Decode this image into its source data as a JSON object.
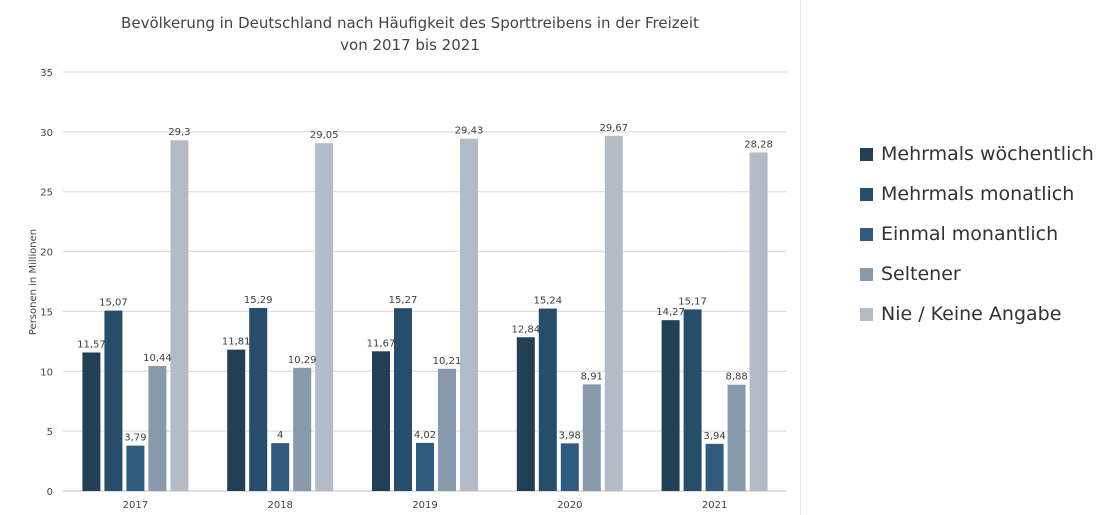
{
  "chart_data": {
    "type": "bar",
    "title": "Bevölkerung in Deutschland nach Häufigkeit des Sporttreibens in der Freizeit",
    "subtitle": "von 2017 bis 2021",
    "xlabel": "",
    "ylabel": "Personen in Millionen",
    "ylim": [
      0,
      35
    ],
    "yticks": [
      0,
      5,
      10,
      15,
      20,
      25,
      30,
      35
    ],
    "grid": true,
    "legend_position": "right",
    "categories": [
      "2017",
      "2018",
      "2019",
      "2020",
      "2021"
    ],
    "series": [
      {
        "name": "Mehrmals wöchentlich",
        "color": "#213f55",
        "values": [
          11.57,
          11.81,
          11.67,
          12.84,
          14.27
        ],
        "labels": [
          "11,57",
          "11,81",
          "11,67",
          "12,84",
          "14,27"
        ]
      },
      {
        "name": "Mehrmals monatlich",
        "color": "#264d6a",
        "values": [
          15.07,
          15.29,
          15.27,
          15.24,
          15.17
        ],
        "labels": [
          "15,07",
          "15,29",
          "15,27",
          "15,24",
          "15,17"
        ]
      },
      {
        "name": "Einmal monantlich",
        "color": "#2e5b7e",
        "values": [
          3.79,
          4,
          4.02,
          3.98,
          3.94
        ],
        "labels": [
          "3,79",
          "4",
          "4,02",
          "3,98",
          "3,94"
        ]
      },
      {
        "name": "Seltener",
        "color": "#8799ab",
        "values": [
          10.44,
          10.29,
          10.21,
          8.91,
          8.88
        ],
        "labels": [
          "10,44",
          "10,29",
          "10,21",
          "8,91",
          "8,88"
        ]
      },
      {
        "name": "Nie / Keine Angabe",
        "color": "#b3bcc6",
        "values": [
          29.3,
          29.05,
          29.43,
          29.67,
          28.28
        ],
        "labels": [
          "29,3",
          "29,05",
          "29,43",
          "29,67",
          "28,28"
        ]
      }
    ]
  }
}
